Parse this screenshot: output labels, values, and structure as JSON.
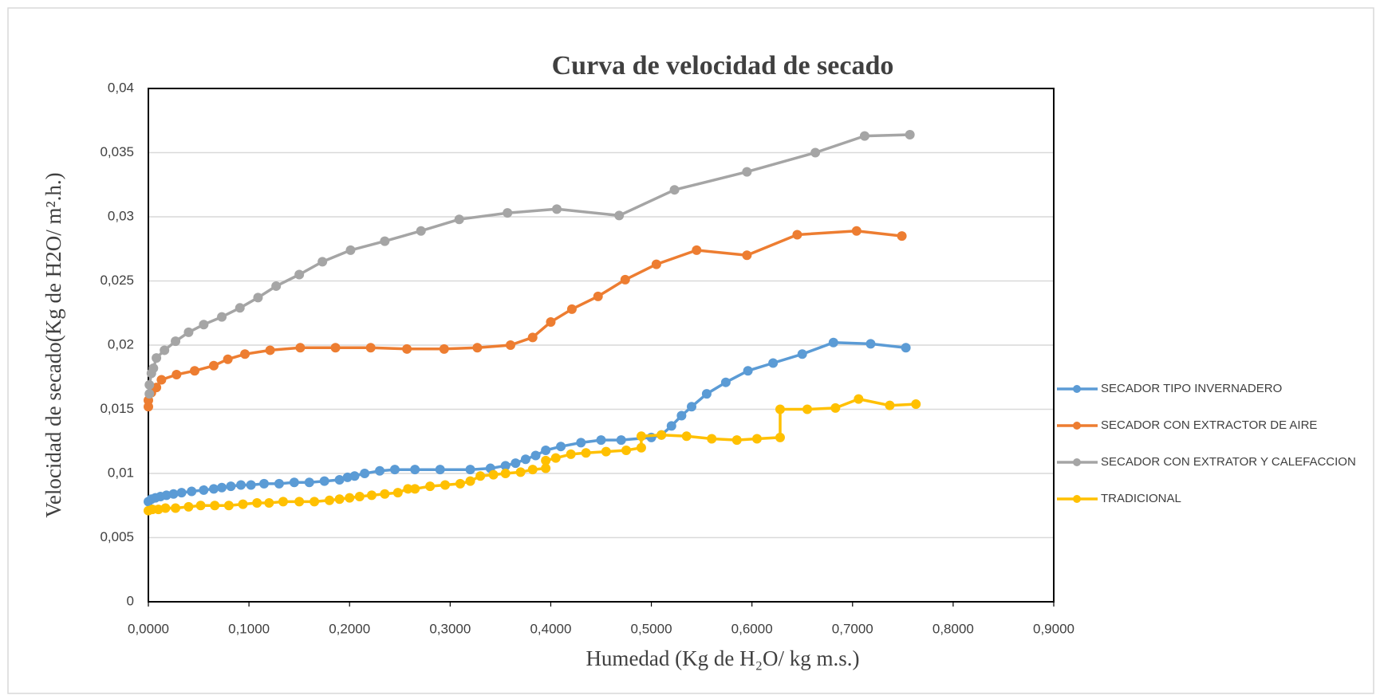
{
  "chart_data": {
    "type": "line",
    "title": "Curva de velocidad de secado",
    "x_label": "Humedad   (Kg de H₂O/ kg m.s.)",
    "y_label": "Velocidad  de secado(Kg de H2O/ m².h.)",
    "xlim": [
      0,
      0.9
    ],
    "xticks": [
      {
        "value": 0,
        "label": "0,0000"
      },
      {
        "value": 0.1,
        "label": "0,1000"
      },
      {
        "value": 0.2,
        "label": "0,2000"
      },
      {
        "value": 0.3,
        "label": "0,3000"
      },
      {
        "value": 0.4,
        "label": "0,4000"
      },
      {
        "value": 0.5,
        "label": "0,5000"
      },
      {
        "value": 0.6,
        "label": "0,6000"
      },
      {
        "value": 0.7,
        "label": "0,7000"
      },
      {
        "value": 0.8,
        "label": "0,8000"
      },
      {
        "value": 0.9,
        "label": "0,9000"
      }
    ],
    "ylim": [
      0,
      0.04
    ],
    "yticks": [
      0,
      {
        "value": 0.005,
        "label": "0,005"
      },
      {
        "value": 0.01,
        "label": "0,01"
      },
      {
        "value": 0.015,
        "label": "0,015"
      },
      {
        "value": 0.02,
        "label": "0,02"
      },
      {
        "value": 0.025,
        "label": "0,025"
      },
      {
        "value": 0.03,
        "label": "0,03"
      },
      {
        "value": 0.035,
        "label": "0,035"
      },
      {
        "value": 0.04,
        "label": "0,04"
      }
    ],
    "grid": true,
    "legend": "right",
    "series": [
      {
        "name": "SECADOR TIPO INVERNADERO",
        "color": "#5b9bd5",
        "x": [
          0,
          0.003,
          0.007,
          0.012,
          0.018,
          0.025,
          0.033,
          0.043,
          0.055,
          0.065,
          0.073,
          0.082,
          0.092,
          0.102,
          0.115,
          0.13,
          0.145,
          0.16,
          0.175,
          0.19,
          0.198,
          0.205,
          0.215,
          0.23,
          0.245,
          0.265,
          0.29,
          0.32,
          0.34,
          0.355,
          0.365,
          0.375,
          0.385,
          0.395,
          0.41,
          0.43,
          0.45,
          0.47,
          0.5,
          0.51,
          0.52,
          0.53,
          0.54,
          0.555,
          0.574,
          0.596,
          0.621,
          0.65,
          0.681,
          0.718,
          0.753
        ],
        "values": [
          0.0078,
          0.008,
          0.0081,
          0.0082,
          0.0083,
          0.0084,
          0.0085,
          0.0086,
          0.0087,
          0.0088,
          0.0089,
          0.009,
          0.0091,
          0.0091,
          0.0092,
          0.0092,
          0.0093,
          0.0093,
          0.0094,
          0.0095,
          0.0097,
          0.0098,
          0.01,
          0.0102,
          0.0103,
          0.0103,
          0.0103,
          0.0103,
          0.0104,
          0.0106,
          0.0108,
          0.0111,
          0.0114,
          0.0118,
          0.0121,
          0.0124,
          0.0126,
          0.0126,
          0.0128,
          0.013,
          0.0137,
          0.0145,
          0.0152,
          0.0162,
          0.0171,
          0.018,
          0.0186,
          0.0193,
          0.0202,
          0.0201,
          0.0198
        ]
      },
      {
        "name": "SECADOR CON EXTRACTOR DE AIRE",
        "color": "#ed7d31",
        "x": [
          0,
          0,
          0.003,
          0.008,
          0.013,
          0.028,
          0.046,
          0.065,
          0.079,
          0.096,
          0.121,
          0.151,
          0.186,
          0.221,
          0.257,
          0.294,
          0.327,
          0.36,
          0.382,
          0.4,
          0.421,
          0.447,
          0.474,
          0.505,
          0.545,
          0.595,
          0.645,
          0.704,
          0.749
        ],
        "values": [
          0.0152,
          0.0157,
          0.0163,
          0.0167,
          0.0173,
          0.0177,
          0.018,
          0.0184,
          0.0189,
          0.0193,
          0.0196,
          0.0198,
          0.0198,
          0.0198,
          0.0197,
          0.0197,
          0.0198,
          0.02,
          0.0206,
          0.0218,
          0.0228,
          0.0238,
          0.0251,
          0.0263,
          0.0274,
          0.027,
          0.0286,
          0.0289,
          0.0285
        ]
      },
      {
        "name": "SECADOR CON EXTRATOR Y CALEFACCION",
        "color": "#a5a5a5",
        "x": [
          0.001,
          0.001,
          0.003,
          0.005,
          0.008,
          0.016,
          0.027,
          0.04,
          0.055,
          0.073,
          0.091,
          0.109,
          0.127,
          0.15,
          0.173,
          0.201,
          0.235,
          0.271,
          0.309,
          0.357,
          0.406,
          0.468,
          0.523,
          0.595,
          0.663,
          0.712,
          0.757
        ],
        "values": [
          0.0162,
          0.0169,
          0.0178,
          0.0182,
          0.019,
          0.0196,
          0.0203,
          0.021,
          0.0216,
          0.0222,
          0.0229,
          0.0237,
          0.0246,
          0.0255,
          0.0265,
          0.0274,
          0.0281,
          0.0289,
          0.0298,
          0.0303,
          0.0306,
          0.0301,
          0.0321,
          0.0335,
          0.035,
          0.0363,
          0.0364
        ]
      },
      {
        "name": "TRADICIONAL",
        "color": "#ffc000",
        "x": [
          0,
          0.004,
          0.01,
          0.017,
          0.027,
          0.04,
          0.052,
          0.066,
          0.08,
          0.094,
          0.108,
          0.12,
          0.134,
          0.15,
          0.165,
          0.18,
          0.19,
          0.2,
          0.21,
          0.222,
          0.235,
          0.248,
          0.258,
          0.265,
          0.28,
          0.295,
          0.31,
          0.32,
          0.33,
          0.343,
          0.355,
          0.37,
          0.382,
          0.395,
          0.395,
          0.405,
          0.42,
          0.435,
          0.455,
          0.475,
          0.49,
          0.49,
          0.51,
          0.535,
          0.56,
          0.585,
          0.605,
          0.628,
          0.628,
          0.655,
          0.683,
          0.706,
          0.737,
          0.763
        ],
        "values": [
          0.0071,
          0.0072,
          0.0072,
          0.0073,
          0.0073,
          0.0074,
          0.0075,
          0.0075,
          0.0075,
          0.0076,
          0.0077,
          0.0077,
          0.0078,
          0.0078,
          0.0078,
          0.0079,
          0.008,
          0.0081,
          0.0082,
          0.0083,
          0.0084,
          0.0085,
          0.0088,
          0.0088,
          0.009,
          0.0091,
          0.0092,
          0.0094,
          0.0098,
          0.0099,
          0.01,
          0.0101,
          0.0103,
          0.0104,
          0.011,
          0.0112,
          0.0115,
          0.0116,
          0.0117,
          0.0118,
          0.012,
          0.0129,
          0.013,
          0.0129,
          0.0127,
          0.0126,
          0.0127,
          0.0128,
          0.015,
          0.015,
          0.0151,
          0.0158,
          0.0153,
          0.0154
        ]
      }
    ]
  }
}
